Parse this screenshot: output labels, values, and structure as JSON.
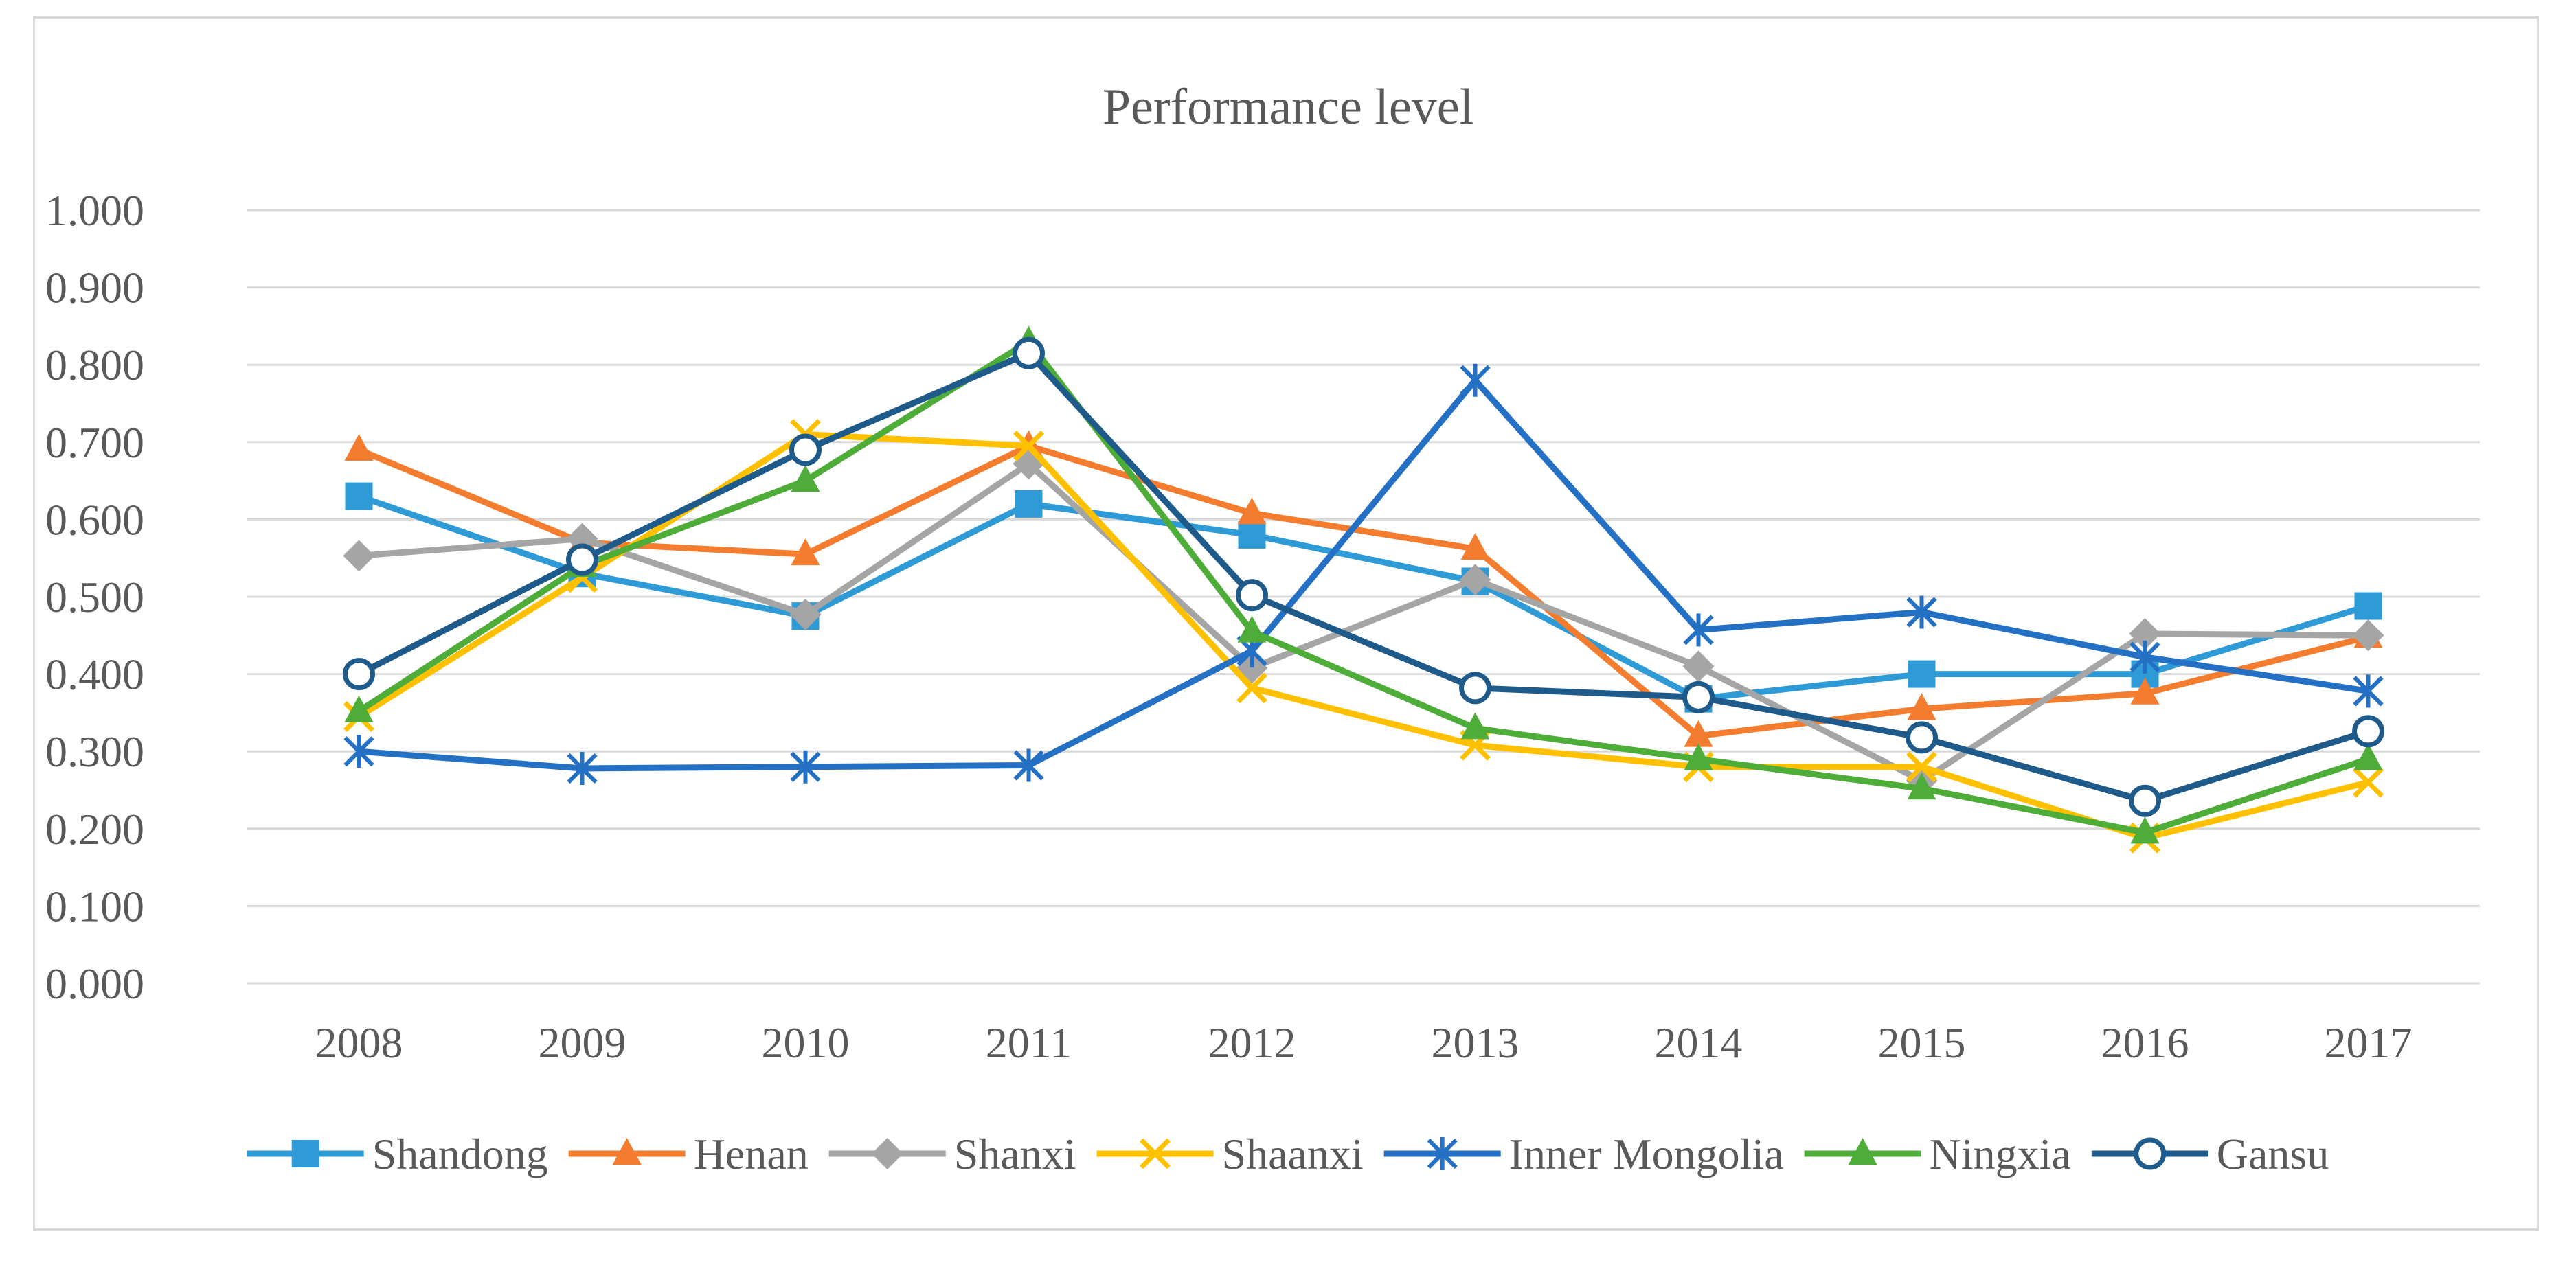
{
  "chart_data": {
    "type": "line",
    "title": "Performance level",
    "xlabel": "",
    "ylabel": "",
    "categories": [
      "2008",
      "2009",
      "2010",
      "2011",
      "2012",
      "2013",
      "2014",
      "2015",
      "2016",
      "2017"
    ],
    "yticks": [
      "0.000",
      "0.100",
      "0.200",
      "0.300",
      "0.400",
      "0.500",
      "0.600",
      "0.700",
      "0.800",
      "0.900",
      "1.000"
    ],
    "ylim": [
      0,
      1
    ],
    "grid": true,
    "legend_position": "bottom",
    "series": [
      {
        "name": "Shandong",
        "color": "#2e9ad6",
        "marker": "square",
        "values": [
          0.63,
          0.53,
          0.475,
          0.62,
          0.58,
          0.52,
          0.368,
          0.4,
          0.4,
          0.488
        ]
      },
      {
        "name": "Henan",
        "color": "#f47c2e",
        "marker": "triangle",
        "values": [
          0.69,
          0.57,
          0.555,
          0.695,
          0.608,
          0.562,
          0.32,
          0.355,
          0.375,
          0.448
        ]
      },
      {
        "name": "Shanxi",
        "color": "#a5a5a5",
        "marker": "diamond",
        "values": [
          0.553,
          0.575,
          0.477,
          0.672,
          0.408,
          0.522,
          0.41,
          0.262,
          0.452,
          0.45
        ]
      },
      {
        "name": "Shaanxi",
        "color": "#ffc000",
        "marker": "x",
        "values": [
          0.345,
          0.525,
          0.71,
          0.695,
          0.382,
          0.308,
          0.28,
          0.28,
          0.188,
          0.26
        ]
      },
      {
        "name": "Inner Mongolia",
        "color": "#2470c5",
        "marker": "star",
        "values": [
          0.3,
          0.278,
          0.28,
          0.282,
          0.43,
          0.78,
          0.457,
          0.48,
          0.422,
          0.378
        ]
      },
      {
        "name": "Ningxia",
        "color": "#4eac38",
        "marker": "triangle",
        "values": [
          0.352,
          0.54,
          0.65,
          0.83,
          0.455,
          0.33,
          0.29,
          0.252,
          0.195,
          0.29
        ]
      },
      {
        "name": "Gansu",
        "color": "#1f5b8a",
        "marker": "circle",
        "values": [
          0.4,
          0.548,
          0.69,
          0.815,
          0.502,
          0.382,
          0.37,
          0.318,
          0.236,
          0.326
        ]
      }
    ]
  }
}
